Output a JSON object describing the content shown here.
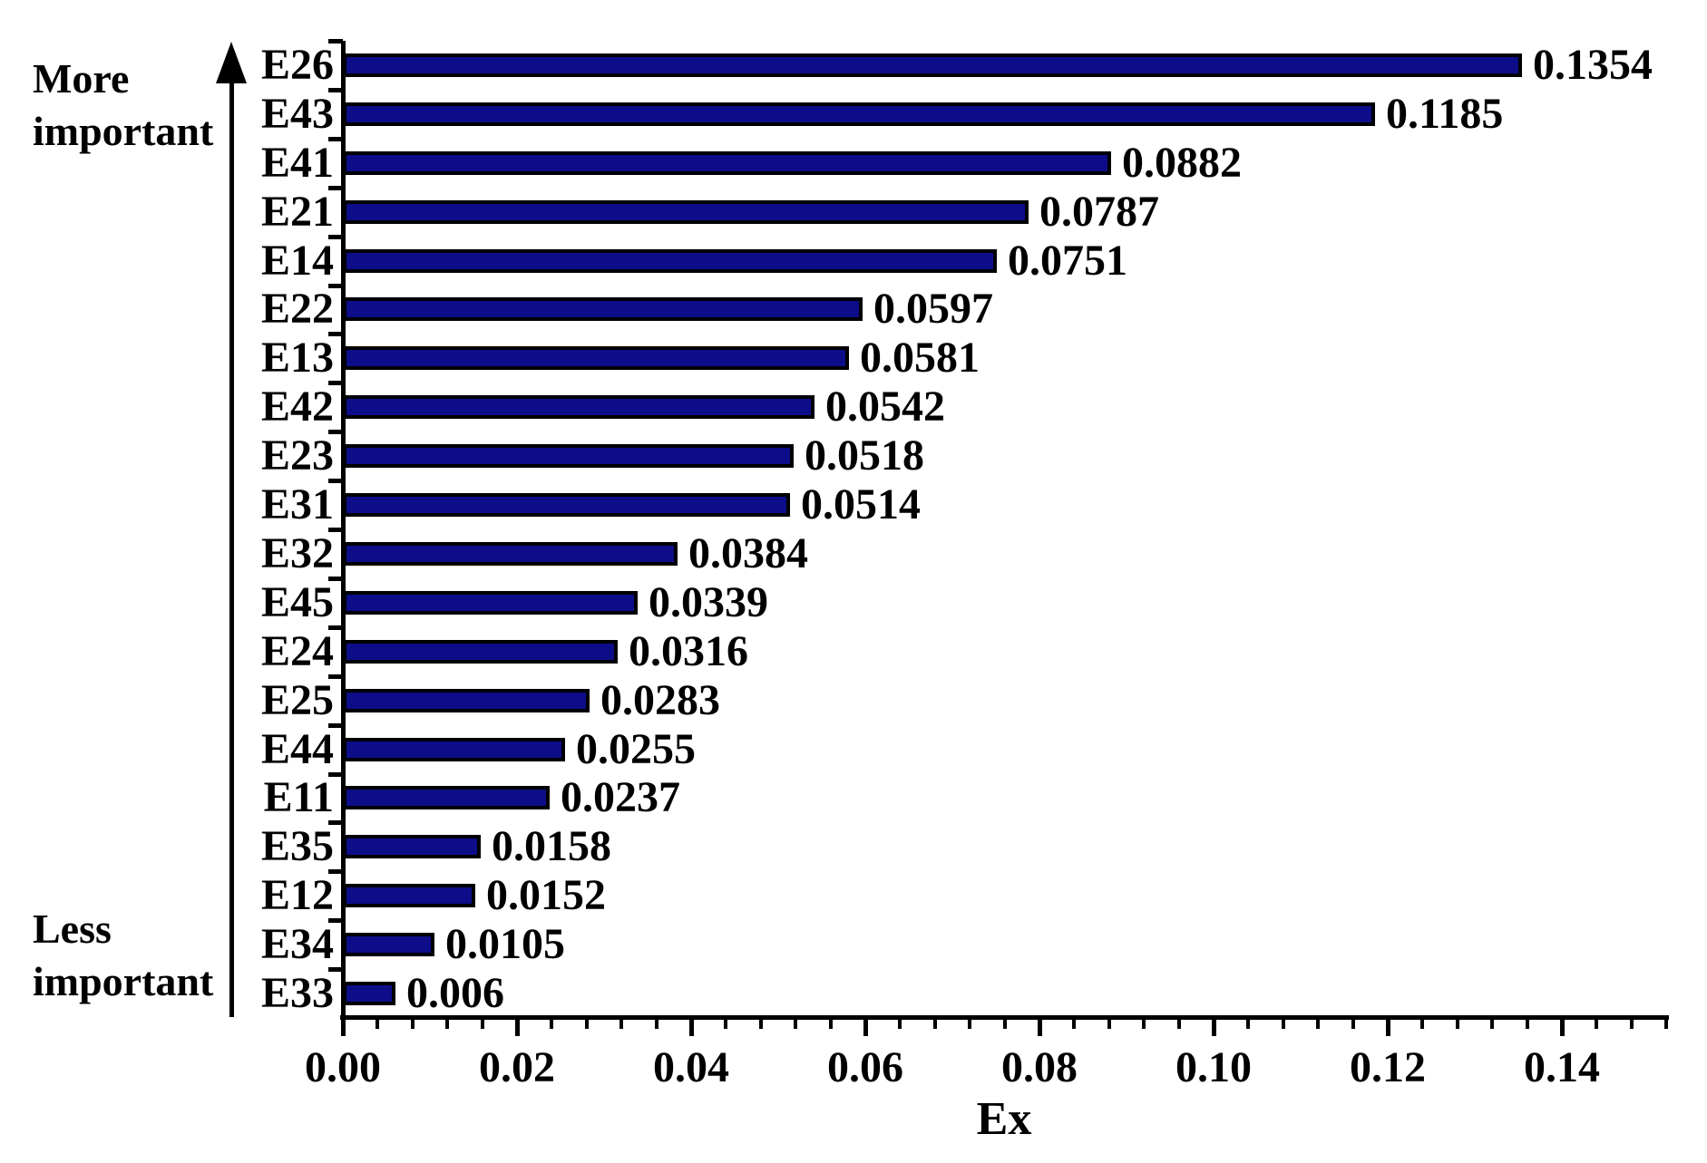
{
  "chart_data": {
    "type": "bar",
    "orientation": "horizontal",
    "categories": [
      "E26",
      "E43",
      "E41",
      "E21",
      "E14",
      "E22",
      "E13",
      "E42",
      "E23",
      "E31",
      "E32",
      "E45",
      "E24",
      "E25",
      "E44",
      "E11",
      "E35",
      "E12",
      "E34",
      "E33"
    ],
    "values": [
      0.1354,
      0.1185,
      0.0882,
      0.0787,
      0.0751,
      0.0597,
      0.0581,
      0.0542,
      0.0518,
      0.0514,
      0.0384,
      0.0339,
      0.0316,
      0.0283,
      0.0255,
      0.0237,
      0.0158,
      0.0152,
      0.0105,
      0.006
    ],
    "value_labels": [
      "0.1354",
      "0.1185",
      "0.0882",
      "0.0787",
      "0.0751",
      "0.0597",
      "0.0581",
      "0.0542",
      "0.0518",
      "0.0514",
      "0.0384",
      "0.0339",
      "0.0316",
      "0.0283",
      "0.0255",
      "0.0237",
      "0.0158",
      "0.0152",
      "0.0105",
      "0.006"
    ],
    "xlabel": "Ex",
    "xlim": [
      0,
      0.152
    ],
    "x_major_step": 0.02,
    "x_minor_step": 0.004,
    "x_tick_labels": [
      "0.00",
      "0.02",
      "0.04",
      "0.06",
      "0.08",
      "0.10",
      "0.12",
      "0.14"
    ],
    "grid": false,
    "legend": "none",
    "bar_color": "#0d0d8a",
    "bar_border_color": "#000000",
    "axis_color": "#000000",
    "text_color": "#000000"
  },
  "annotations": {
    "more_important": "More\nimportant",
    "less_important": "Less\nimportant"
  }
}
